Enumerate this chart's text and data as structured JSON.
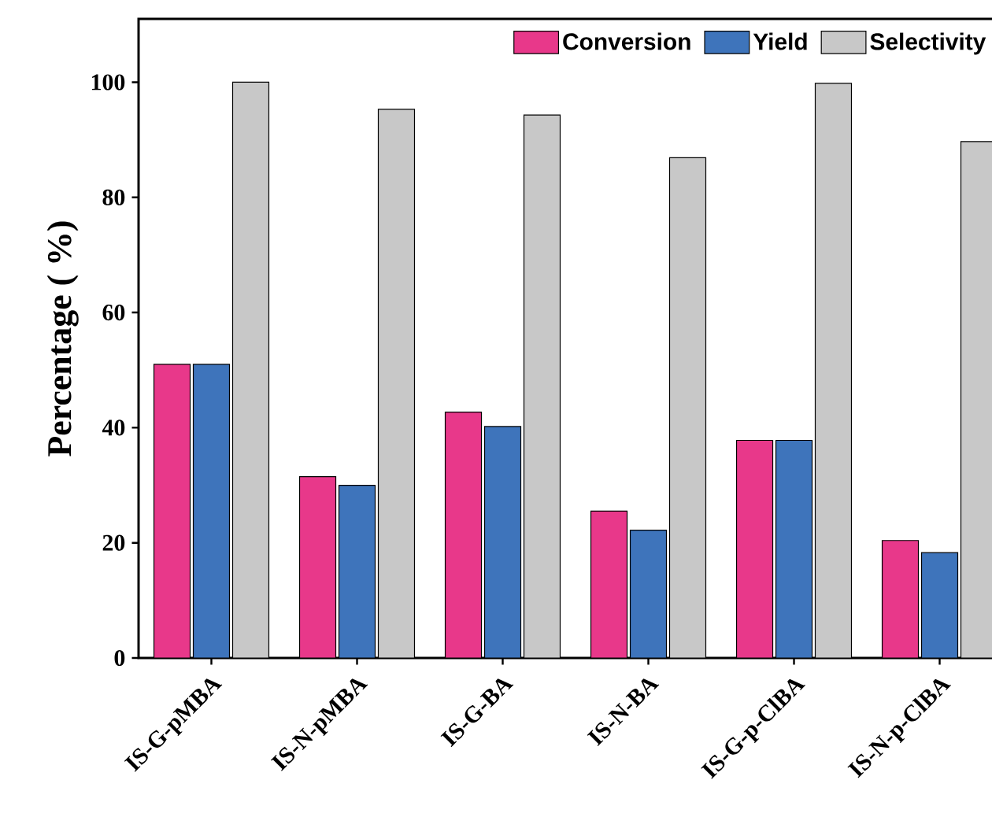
{
  "chart_data": {
    "type": "bar",
    "ylabel": "Percentage ( %)",
    "categories": [
      "IS-G-pMBA",
      "IS-N-pMBA",
      "IS-G-BA",
      "IS-N-BA",
      "IS-G-p-ClBA",
      "IS-N-p-ClBA"
    ],
    "series": [
      {
        "name": "Conversion",
        "color": "#e8388a",
        "values": [
          51,
          31.5,
          42.7,
          25.5,
          37.8,
          20.4
        ]
      },
      {
        "name": "Yield",
        "color": "#3e74bb",
        "values": [
          51,
          30,
          40.2,
          22.2,
          37.8,
          18.3
        ]
      },
      {
        "name": "Selectivity",
        "color": "#c8c8c8",
        "values": [
          100,
          95.3,
          94.3,
          86.9,
          99.8,
          89.7
        ]
      }
    ],
    "ylim": [
      0,
      111
    ],
    "yticks": [
      0,
      20,
      40,
      60,
      80,
      100
    ],
    "legend": "top",
    "grid": false
  }
}
